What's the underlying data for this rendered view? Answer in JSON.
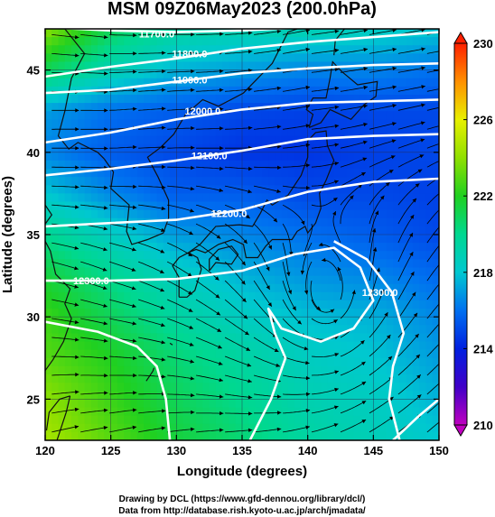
{
  "chart_data": {
    "type": "heatmap",
    "title": "MSM 09Z06May2023 (200.0hPa)",
    "xlabel": "Longitude (degrees)",
    "ylabel": "Latitude  (degrees)",
    "xlim": [
      120,
      150
    ],
    "ylim": [
      22.5,
      47.5
    ],
    "x_ticks": [
      120,
      125,
      130,
      135,
      140,
      145,
      150
    ],
    "y_ticks": [
      25,
      30,
      35,
      40,
      45
    ],
    "colorbar": {
      "range": [
        210,
        230
      ],
      "ticks": [
        210,
        214,
        218,
        222,
        226,
        230
      ],
      "stops": [
        {
          "value": 210,
          "color": "#c000c0"
        },
        {
          "value": 212,
          "color": "#4000c8"
        },
        {
          "value": 214,
          "color": "#0020e0"
        },
        {
          "value": 216,
          "color": "#0070f0"
        },
        {
          "value": 218,
          "color": "#00c8d0"
        },
        {
          "value": 220,
          "color": "#00d890"
        },
        {
          "value": 222,
          "color": "#20d020"
        },
        {
          "value": 224,
          "color": "#90e000"
        },
        {
          "value": 226,
          "color": "#e8f000"
        },
        {
          "value": 228,
          "color": "#ff9000"
        },
        {
          "value": 230,
          "color": "#ff2000"
        }
      ]
    },
    "temperature_grid": {
      "lon": [
        120,
        125,
        130,
        135,
        140,
        145,
        150
      ],
      "lat": [
        47.5,
        45,
        42.5,
        40,
        37.5,
        35,
        32.5,
        30,
        27.5,
        25,
        22.5
      ],
      "values": [
        [
          224,
          221,
          219.5,
          219,
          219,
          218.5,
          218
        ],
        [
          221,
          219,
          217.5,
          217,
          216.5,
          216.5,
          216
        ],
        [
          217,
          216,
          215.5,
          215,
          214.8,
          215,
          215
        ],
        [
          216.5,
          215.5,
          215,
          214.5,
          214.5,
          214.8,
          215
        ],
        [
          218,
          216.5,
          215.5,
          215.5,
          215,
          215,
          214.8
        ],
        [
          220,
          218.5,
          217,
          216.5,
          216,
          215.5,
          215
        ],
        [
          221.5,
          220,
          218.5,
          217.5,
          216.8,
          216.5,
          215.8
        ],
        [
          222.5,
          221,
          219.5,
          218.5,
          217.8,
          217.5,
          216.5
        ],
        [
          223,
          222,
          220.5,
          219.5,
          218.5,
          218,
          217
        ],
        [
          224,
          222.5,
          221,
          220,
          219,
          218.5,
          217.5
        ],
        [
          224.5,
          223,
          221.5,
          220.5,
          219.5,
          218.8,
          218
        ]
      ]
    },
    "contours": [
      {
        "label": "11700.0",
        "label_lon": 128.5,
        "label_lat": 47.2,
        "points": [
          [
            120,
            47.6
          ],
          [
            125,
            47.4
          ],
          [
            130,
            47.3
          ],
          [
            135,
            47.4
          ],
          [
            140,
            47.6
          ],
          [
            145,
            47.9
          ],
          [
            150,
            48.2
          ]
        ]
      },
      {
        "label": "11800.0",
        "label_lon": 131,
        "label_lat": 46.0,
        "points": [
          [
            120,
            44.6
          ],
          [
            125,
            45.2
          ],
          [
            130,
            45.7
          ],
          [
            135,
            46.3
          ],
          [
            140,
            46.7
          ],
          [
            145,
            47.0
          ],
          [
            150,
            47.3
          ]
        ]
      },
      {
        "label": "11900.0",
        "label_lon": 131,
        "label_lat": 44.4,
        "points": [
          [
            120,
            43.6
          ],
          [
            125,
            43.8
          ],
          [
            130,
            44.3
          ],
          [
            135,
            44.8
          ],
          [
            140,
            45.1
          ],
          [
            145,
            45.3
          ],
          [
            150,
            45.4
          ]
        ]
      },
      {
        "label": "12000.0",
        "label_lon": 132,
        "label_lat": 42.5,
        "points": [
          [
            120,
            40.6
          ],
          [
            125,
            41.2
          ],
          [
            130,
            42.0
          ],
          [
            135,
            42.6
          ],
          [
            140,
            43.0
          ],
          [
            145,
            43.1
          ],
          [
            150,
            43.2
          ]
        ]
      },
      {
        "label": "12100.0",
        "label_lon": 132.5,
        "label_lat": 39.8,
        "points": [
          [
            120,
            38.6
          ],
          [
            125,
            39.0
          ],
          [
            130,
            39.5
          ],
          [
            135,
            40.1
          ],
          [
            140,
            40.8
          ],
          [
            145,
            41.0
          ],
          [
            150,
            41.1
          ]
        ]
      },
      {
        "label": "12200.0",
        "label_lon": 134,
        "label_lat": 36.3,
        "points": [
          [
            120,
            35.5
          ],
          [
            125,
            35.7
          ],
          [
            130,
            35.9
          ],
          [
            135,
            36.5
          ],
          [
            140,
            37.6
          ],
          [
            145,
            38.2
          ],
          [
            150,
            38.4
          ]
        ]
      },
      {
        "label": "12300.0",
        "label_lon": 123.5,
        "label_lat": 32.2,
        "points": [
          [
            120,
            32.2
          ],
          [
            125,
            32.2
          ],
          [
            130,
            32.3
          ],
          [
            135,
            32.8
          ],
          [
            139,
            33.8
          ],
          [
            142,
            34.2
          ],
          [
            144,
            33.0
          ],
          [
            145,
            31.0
          ],
          [
            143.5,
            29.3
          ],
          [
            141,
            28.5
          ],
          [
            138,
            29.3
          ],
          [
            137,
            30.5
          ],
          [
            137.5,
            29.0
          ],
          [
            138.3,
            27.5
          ],
          [
            137.2,
            25.0
          ],
          [
            135.6,
            22.5
          ]
        ]
      },
      {
        "label": "12300.0",
        "label_lon": 145.5,
        "label_lat": 31.5,
        "points": [
          [
            147,
            22.5
          ],
          [
            146.2,
            25.0
          ],
          [
            146.5,
            27.0
          ],
          [
            147.3,
            29.0
          ],
          [
            146.4,
            31.5
          ],
          [
            144.5,
            33.5
          ],
          [
            142,
            34.6
          ]
        ]
      },
      {
        "label": "",
        "label_lon": 0,
        "label_lat": 0,
        "points": [
          [
            120,
            29.7
          ],
          [
            124,
            29.1
          ],
          [
            127,
            28.2
          ],
          [
            128.5,
            27.0
          ],
          [
            129.2,
            25.0
          ],
          [
            129.5,
            22.5
          ]
        ]
      },
      {
        "label": "",
        "label_lon": 0,
        "label_lat": 0,
        "points": [
          [
            146.5,
            22.5
          ],
          [
            148.5,
            24.0
          ],
          [
            150,
            25.0
          ]
        ]
      }
    ],
    "flow": {
      "jet_axis": [
        [
          120,
          40.5
        ],
        [
          125,
          41.0
        ],
        [
          130,
          41.8
        ],
        [
          135,
          42.5
        ],
        [
          140,
          43.3
        ],
        [
          145,
          43.8
        ],
        [
          150,
          44.2
        ]
      ],
      "cyclone_center": [
        141.5,
        30.5
      ]
    }
  },
  "footer": {
    "line1": "Drawing by DCL (https://www.gfd-dennou.org/library/dcl/)",
    "line2": "Data from http://database.rish.kyoto-u.ac.jp/arch/jmadata/"
  }
}
